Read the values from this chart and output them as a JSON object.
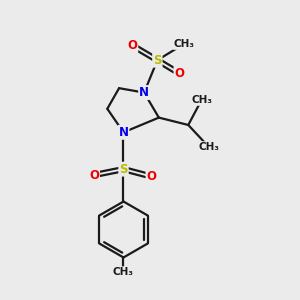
{
  "background_color": "#ebebeb",
  "bond_color": "#1a1a1a",
  "N_color": "#0000ee",
  "S_color": "#bbbb00",
  "O_color": "#ee0000",
  "C_color": "#1a1a1a",
  "bond_width": 1.6,
  "figsize": [
    3.0,
    3.0
  ],
  "dpi": 100,
  "xlim": [
    0,
    10
  ],
  "ylim": [
    0,
    10
  ]
}
